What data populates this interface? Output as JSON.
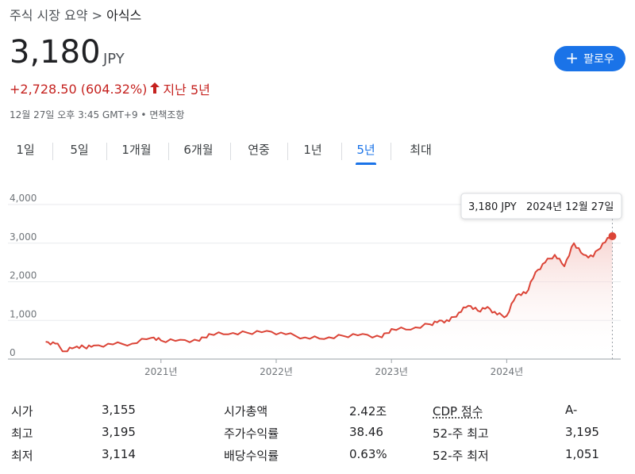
{
  "breadcrumb": {
    "parent": "주식 시장 요약",
    "separator": ">",
    "current": "아식스"
  },
  "quote": {
    "price": "3,180",
    "currency": "JPY",
    "change": "+2,728.50 (604.32%)",
    "arrow": "🡑",
    "period": "지난 5년",
    "timestamp": "12월 27일 오후 3:45 GMT+9",
    "disclaimer": "면책조항"
  },
  "follow_button": {
    "icon": "plus-icon",
    "label": "팔로우"
  },
  "tabs": [
    {
      "label": "1일",
      "active": false
    },
    {
      "label": "5일",
      "active": false
    },
    {
      "label": "1개월",
      "active": false
    },
    {
      "label": "6개월",
      "active": false
    },
    {
      "label": "연중",
      "active": false
    },
    {
      "label": "1년",
      "active": false
    },
    {
      "label": "5년",
      "active": true
    },
    {
      "label": "최대",
      "active": false
    }
  ],
  "chart_data": {
    "type": "area",
    "y_ticks": [
      "4,000",
      "3,000",
      "2,000",
      "1,000",
      "0"
    ],
    "ylim": [
      0,
      4000
    ],
    "x_labels": [
      "2021년",
      "2022년",
      "2023년",
      "2024년"
    ],
    "tooltip": {
      "price": "3,180 JPY",
      "date": "2024년 12월 27일"
    },
    "line_color": "#db4437",
    "grid": true,
    "x": [
      "2020-01",
      "2020-02",
      "2020-03",
      "2020-04",
      "2020-05",
      "2020-06",
      "2020-08",
      "2020-10",
      "2020-12",
      "2021-01",
      "2021-03",
      "2021-05",
      "2021-06",
      "2021-08",
      "2021-10",
      "2021-12",
      "2022-02",
      "2022-04",
      "2022-06",
      "2022-08",
      "2022-10",
      "2022-12",
      "2023-01",
      "2023-03",
      "2023-05",
      "2023-06",
      "2023-07",
      "2023-08",
      "2023-09",
      "2023-10",
      "2023-11",
      "2023-12",
      "2024-01",
      "2024-02",
      "2024-03",
      "2024-04",
      "2024-05",
      "2024-06",
      "2024-07",
      "2024-08",
      "2024-09",
      "2024-10",
      "2024-11",
      "2024-12"
    ],
    "values": [
      450,
      400,
      200,
      300,
      310,
      350,
      380,
      400,
      550,
      480,
      500,
      470,
      650,
      640,
      680,
      730,
      640,
      560,
      520,
      600,
      650,
      560,
      780,
      760,
      900,
      1000,
      980,
      1200,
      1380,
      1250,
      1350,
      1150,
      1120,
      1650,
      1700,
      2250,
      2500,
      2700,
      2400,
      3000,
      2700,
      2650,
      3000,
      3180
    ]
  },
  "stats": [
    [
      {
        "label": "시가",
        "value": "3,155"
      },
      {
        "label": "최고",
        "value": "3,195"
      },
      {
        "label": "최저",
        "value": "3,114"
      }
    ],
    [
      {
        "label": "시가총액",
        "value": "2.42조"
      },
      {
        "label": "주가수익률",
        "value": "38.46"
      },
      {
        "label": "배당수익률",
        "value": "0.63%"
      }
    ],
    [
      {
        "label": "CDP 점수",
        "value": "A-"
      },
      {
        "label": "52-주 최고",
        "value": "3,195"
      },
      {
        "label": "52-주 최저",
        "value": "1,051"
      }
    ]
  ]
}
